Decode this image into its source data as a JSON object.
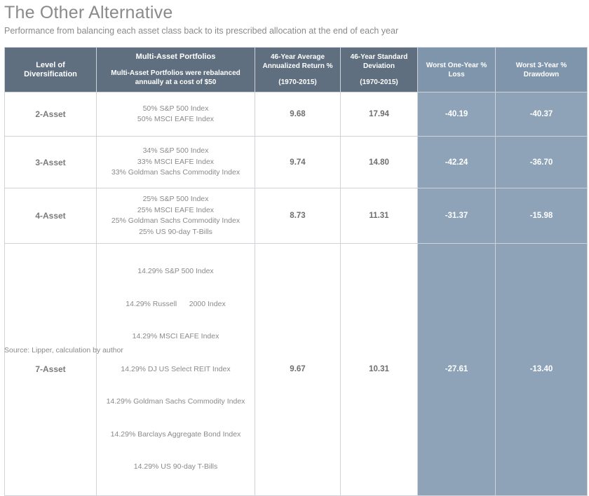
{
  "title": "The Other Alternative",
  "subtitle": "Performance from balancing each asset class back to its prescribed allocation at the end of each year",
  "headers": {
    "level": "Level of Diversification",
    "portfolios_title": "Multi-Asset Portfolios",
    "portfolios_note": "Multi-Asset Portfolios were rebalanced annually at a cost of $50",
    "return_title": "46-Year Average Annualized Return %",
    "return_period": "(1970-2015)",
    "sd_title": "46-Year Standard Deviation",
    "sd_period": "(1970-2015)",
    "worst1": "Worst One-Year % Loss",
    "worst3": "Worst 3-Year % Drawdown"
  },
  "rows": [
    {
      "level": "2-Asset",
      "portfolio": [
        "50% S&P 500 Index",
        "50% MSCI EAFE Index"
      ],
      "return": "9.68",
      "sd": "17.94",
      "worst1": "-40.19",
      "worst3": "-40.37"
    },
    {
      "level": "3-Asset",
      "portfolio": [
        "34% S&P 500 Index",
        "33% MSCI EAFE Index",
        "33% Goldman Sachs Commodity Index"
      ],
      "return": "9.74",
      "sd": "14.80",
      "worst1": "-42.24",
      "worst3": "-36.70"
    },
    {
      "level": "4-Asset",
      "portfolio": [
        "25% S&P 500 Index",
        "25% MSCI EAFE Index",
        "25% Goldman Sachs Commodity Index",
        "25% US 90-day T-Bills"
      ],
      "return": "8.73",
      "sd": "11.31",
      "worst1": "-31.37",
      "worst3": "-15.98"
    },
    {
      "level": "7-Asset",
      "portfolio": [
        "14.29% S&P 500 Index",
        "14.29% Russell      2000 Index",
        "14.29% MSCI EAFE Index",
        "14.29% DJ US Select REIT Index",
        "14.29% Goldman Sachs Commodity Index",
        "14.29% Barclays Aggregate Bond Index",
        "14.29% US 90-day T-Bills"
      ],
      "return": "9.67",
      "sd": "10.31",
      "worst1": "-27.61",
      "worst3": "-13.40"
    }
  ],
  "source": "Source: Lipper, calculation by author",
  "colors": {
    "header_dark": "#5f6f80",
    "header_light": "#7e95ab",
    "worst_cells": "#8ea3b8"
  }
}
